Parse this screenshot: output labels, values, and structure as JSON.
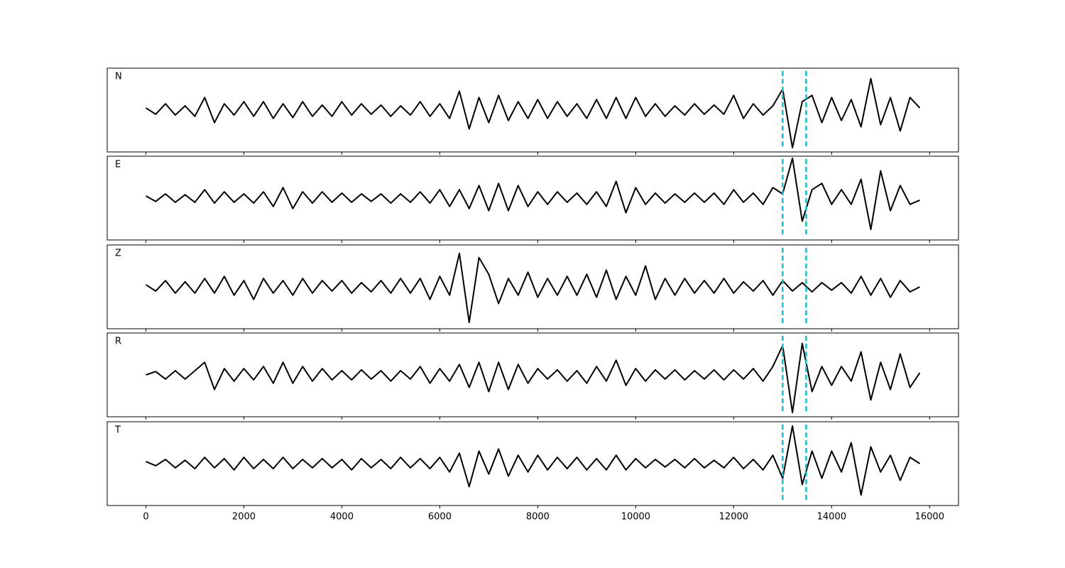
{
  "chart_data": {
    "type": "line",
    "x": [
      0,
      200,
      400,
      600,
      800,
      1000,
      1200,
      1400,
      1600,
      1800,
      2000,
      2200,
      2400,
      2600,
      2800,
      3000,
      3200,
      3400,
      3600,
      3800,
      4000,
      4200,
      4400,
      4600,
      4800,
      5000,
      5200,
      5400,
      5600,
      5800,
      6000,
      6200,
      6400,
      6600,
      6800,
      7000,
      7200,
      7400,
      7600,
      7800,
      8000,
      8200,
      8400,
      8600,
      8800,
      9000,
      9200,
      9400,
      9600,
      9800,
      10000,
      10200,
      10400,
      10600,
      10800,
      11000,
      11200,
      11400,
      11600,
      11800,
      12000,
      12200,
      12400,
      12600,
      12800,
      13000,
      13200,
      13400,
      13600,
      13800,
      14000,
      14200,
      14400,
      14600,
      14800,
      15000,
      15200,
      15400,
      15600,
      15800
    ],
    "series": [
      {
        "name": "N",
        "color": "#000000",
        "values": [
          0.05,
          -0.1,
          0.15,
          -0.12,
          0.1,
          -0.15,
          0.3,
          -0.3,
          0.15,
          -0.12,
          0.2,
          -0.15,
          0.2,
          -0.2,
          0.15,
          -0.18,
          0.2,
          -0.15,
          0.12,
          -0.15,
          0.2,
          -0.12,
          0.15,
          -0.1,
          0.12,
          -0.15,
          0.1,
          -0.12,
          0.2,
          -0.15,
          0.15,
          -0.2,
          0.45,
          -0.45,
          0.3,
          -0.3,
          0.35,
          -0.25,
          0.2,
          -0.2,
          0.25,
          -0.2,
          0.2,
          -0.15,
          0.15,
          -0.2,
          0.25,
          -0.2,
          0.3,
          -0.2,
          0.3,
          -0.15,
          0.15,
          -0.15,
          0.1,
          -0.12,
          0.15,
          -0.1,
          0.12,
          -0.1,
          0.35,
          -0.2,
          0.15,
          -0.12,
          0.1,
          0.5,
          -0.9,
          0.2,
          0.35,
          -0.3,
          0.3,
          -0.25,
          0.25,
          -0.4,
          0.75,
          -0.35,
          0.3,
          -0.5,
          0.3,
          0.05
        ]
      },
      {
        "name": "E",
        "color": "#000000",
        "values": [
          0.05,
          -0.08,
          0.1,
          -0.1,
          0.08,
          -0.1,
          0.2,
          -0.12,
          0.15,
          -0.1,
          0.1,
          -0.12,
          0.15,
          -0.2,
          0.25,
          -0.25,
          0.15,
          -0.12,
          0.15,
          -0.1,
          0.12,
          -0.1,
          0.1,
          -0.08,
          0.1,
          -0.12,
          0.1,
          -0.1,
          0.15,
          -0.12,
          0.2,
          -0.2,
          0.2,
          -0.25,
          0.3,
          -0.3,
          0.35,
          -0.3,
          0.3,
          -0.2,
          0.15,
          -0.15,
          0.15,
          -0.1,
          0.12,
          -0.15,
          0.15,
          -0.2,
          0.4,
          -0.35,
          0.25,
          -0.15,
          0.12,
          -0.12,
          0.1,
          -0.1,
          0.12,
          -0.1,
          0.12,
          -0.15,
          0.2,
          -0.1,
          0.12,
          -0.15,
          0.25,
          0.1,
          0.95,
          -0.55,
          0.2,
          0.35,
          -0.15,
          0.2,
          -0.15,
          0.45,
          -0.75,
          0.65,
          -0.3,
          0.3,
          -0.15,
          -0.05
        ]
      },
      {
        "name": "Z",
        "color": "#000000",
        "values": [
          0.05,
          -0.1,
          0.15,
          -0.15,
          0.12,
          -0.15,
          0.2,
          -0.15,
          0.25,
          -0.2,
          0.15,
          -0.3,
          0.2,
          -0.15,
          0.15,
          -0.2,
          0.2,
          -0.15,
          0.15,
          -0.1,
          0.15,
          -0.15,
          0.1,
          -0.12,
          0.15,
          -0.15,
          0.2,
          -0.15,
          0.2,
          -0.3,
          0.25,
          -0.2,
          0.8,
          -0.85,
          0.7,
          0.3,
          -0.4,
          0.2,
          -0.2,
          0.35,
          -0.25,
          0.2,
          -0.2,
          0.25,
          -0.2,
          0.3,
          -0.25,
          0.4,
          -0.3,
          0.25,
          -0.2,
          0.5,
          -0.3,
          0.2,
          -0.2,
          0.2,
          -0.15,
          0.15,
          -0.15,
          0.2,
          -0.15,
          0.12,
          -0.1,
          0.15,
          -0.2,
          0.15,
          -0.1,
          0.1,
          -0.12,
          0.1,
          -0.08,
          0.1,
          -0.15,
          0.25,
          -0.2,
          0.2,
          -0.25,
          0.15,
          -0.12,
          0.0
        ]
      },
      {
        "name": "R",
        "color": "#000000",
        "values": [
          0.0,
          0.08,
          -0.1,
          0.1,
          -0.1,
          0.1,
          0.3,
          -0.35,
          0.15,
          -0.15,
          0.15,
          -0.12,
          0.2,
          -0.2,
          0.3,
          -0.2,
          0.2,
          -0.15,
          0.15,
          -0.12,
          0.1,
          -0.12,
          0.12,
          -0.1,
          0.1,
          -0.15,
          0.1,
          -0.1,
          0.2,
          -0.2,
          0.15,
          -0.15,
          0.25,
          -0.3,
          0.3,
          -0.4,
          0.3,
          -0.35,
          0.25,
          -0.2,
          0.15,
          -0.1,
          0.12,
          -0.15,
          0.1,
          -0.2,
          0.2,
          -0.15,
          0.35,
          -0.25,
          0.15,
          -0.15,
          0.12,
          -0.1,
          0.12,
          -0.12,
          0.1,
          -0.1,
          0.12,
          -0.12,
          0.12,
          -0.1,
          0.15,
          -0.15,
          0.2,
          0.7,
          -0.9,
          0.75,
          -0.4,
          0.2,
          -0.25,
          0.2,
          -0.15,
          0.55,
          -0.6,
          0.3,
          -0.35,
          0.5,
          -0.3,
          0.05
        ]
      },
      {
        "name": "T",
        "color": "#000000",
        "values": [
          0.05,
          -0.05,
          0.1,
          -0.1,
          0.08,
          -0.12,
          0.15,
          -0.1,
          0.12,
          -0.15,
          0.15,
          -0.12,
          0.1,
          -0.12,
          0.15,
          -0.12,
          0.1,
          -0.1,
          0.12,
          -0.1,
          0.1,
          -0.15,
          0.12,
          -0.1,
          0.1,
          -0.12,
          0.15,
          -0.1,
          0.12,
          -0.12,
          0.15,
          -0.2,
          0.25,
          -0.55,
          0.3,
          -0.25,
          0.35,
          -0.3,
          0.2,
          -0.2,
          0.2,
          -0.15,
          0.15,
          -0.12,
          0.15,
          -0.15,
          0.12,
          -0.15,
          0.2,
          -0.15,
          0.12,
          -0.1,
          0.1,
          -0.08,
          0.1,
          -0.1,
          0.12,
          -0.1,
          0.08,
          -0.1,
          0.15,
          -0.12,
          0.1,
          -0.15,
          0.2,
          -0.35,
          0.9,
          -0.5,
          0.3,
          -0.35,
          0.3,
          -0.2,
          0.5,
          -0.75,
          0.4,
          -0.2,
          0.2,
          -0.4,
          0.15,
          0.0
        ]
      }
    ],
    "vlines": {
      "x": [
        13000,
        13480
      ],
      "color": "#17becf"
    },
    "xlim": [
      -790,
      16590
    ],
    "xticks": [
      0,
      2000,
      4000,
      6000,
      8000,
      10000,
      12000,
      14000,
      16000
    ],
    "ylim": [
      -1,
      1
    ]
  }
}
